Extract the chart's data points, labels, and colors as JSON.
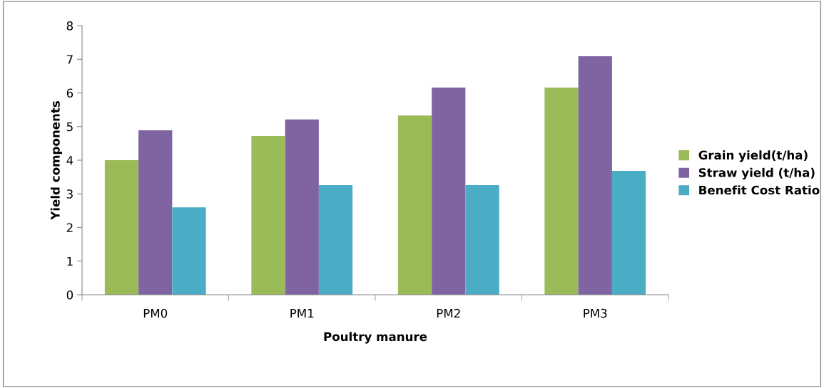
{
  "chart_data": {
    "type": "bar",
    "xlabel": "Poultry manure",
    "ylabel": "Yield components",
    "categories": [
      "PM0",
      "PM1",
      "PM2",
      "PM3"
    ],
    "series": [
      {
        "name": "Grain yield(t/ha)",
        "color": "#9bbb59",
        "values": [
          4.0,
          4.72,
          5.33,
          6.16
        ]
      },
      {
        "name": "Straw yield (t/ha)",
        "color": "#8064a2",
        "values": [
          4.89,
          5.21,
          6.16,
          7.09
        ]
      },
      {
        "name": "Benefit Cost Ratio",
        "color": "#4bacc6",
        "values": [
          2.6,
          3.26,
          3.26,
          3.68
        ]
      }
    ],
    "ylim": [
      0,
      8
    ],
    "yticks": [
      0,
      1,
      2,
      3,
      4,
      5,
      6,
      7,
      8
    ],
    "grid": false,
    "legend": "right"
  }
}
